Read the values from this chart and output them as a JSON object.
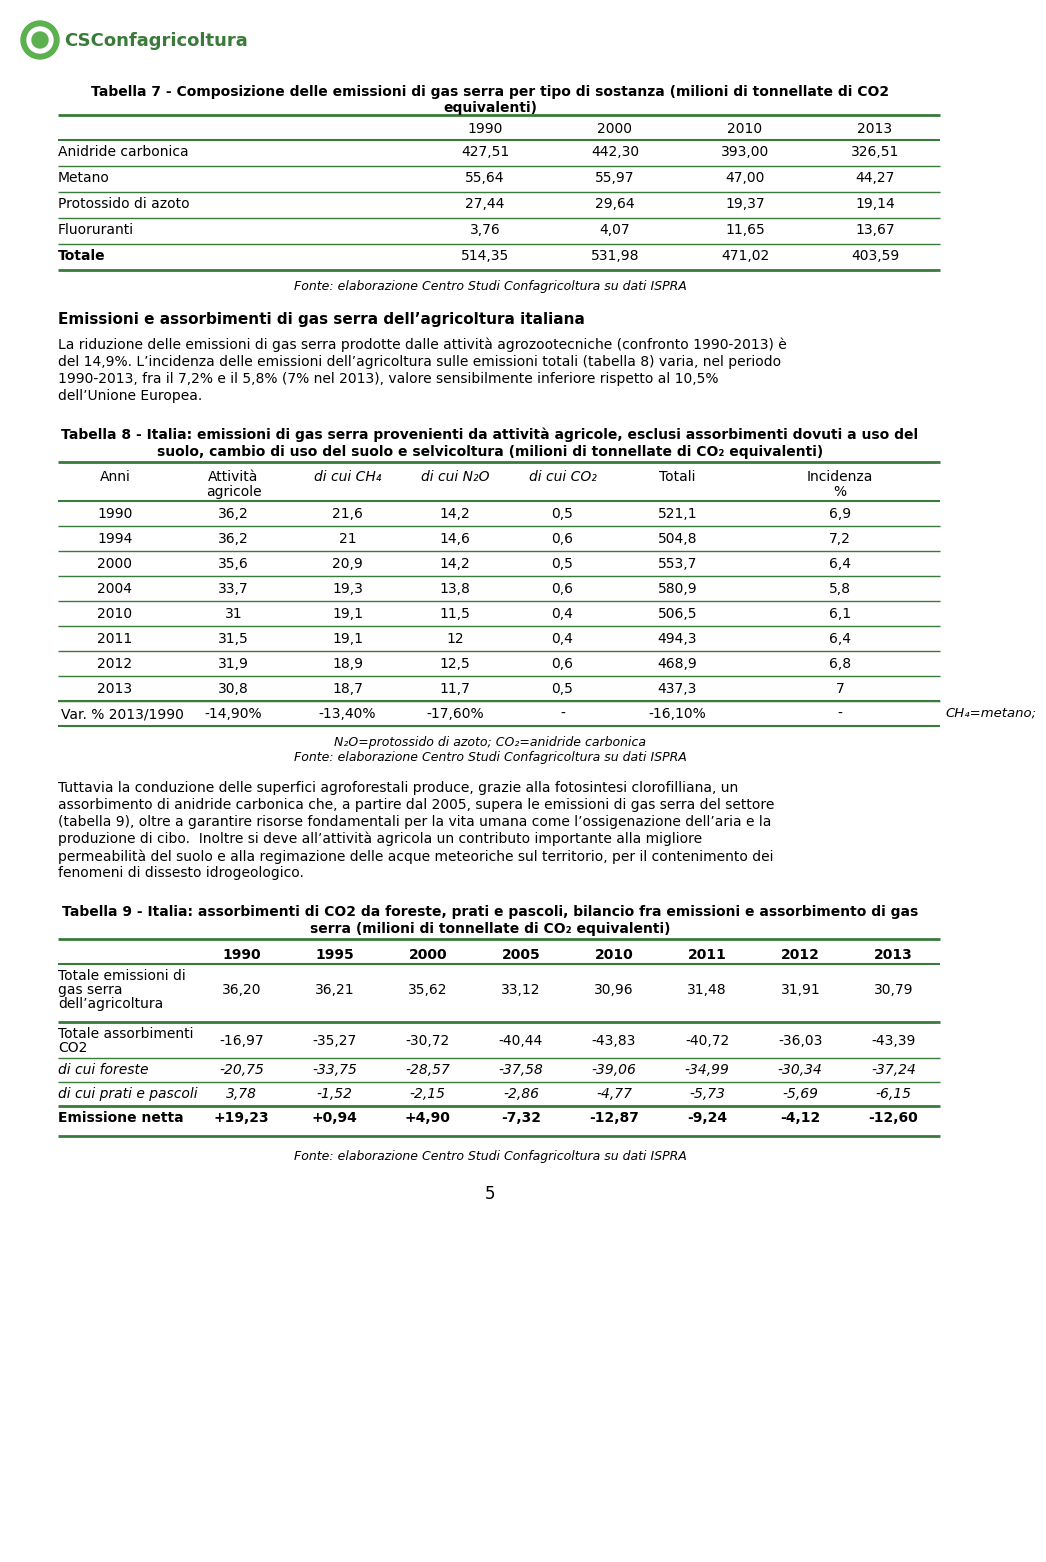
{
  "logo_text": "CSConfagricoltura",
  "page_number": "5",
  "table7_title_line1": "Tabella 7 - Composizione delle emissioni di gas serra per tipo di sostanza (milioni di tonnellate di CO2",
  "table7_title_line2": "equivalenti)",
  "table7_cols": [
    "",
    "1990",
    "2000",
    "2010",
    "2013"
  ],
  "table7_rows": [
    [
      "Anidride carbonica",
      "427,51",
      "442,30",
      "393,00",
      "326,51"
    ],
    [
      "Metano",
      "55,64",
      "55,97",
      "47,00",
      "44,27"
    ],
    [
      "Protossido di azoto",
      "27,44",
      "29,64",
      "19,37",
      "19,14"
    ],
    [
      "Fluoruranti",
      "3,76",
      "4,07",
      "11,65",
      "13,67"
    ],
    [
      "Totale",
      "514,35",
      "531,98",
      "471,02",
      "403,59"
    ]
  ],
  "table7_fonte": "Fonte: elaborazione Centro Studi Confagricoltura su dati ISPRA",
  "section_title": "Emissioni e assorbimenti di gas serra dell’agricoltura italiana",
  "para1_lines": [
    "La riduzione delle emissioni di gas serra prodotte dalle attività agrozootecniche (confronto 1990-2013) è",
    "del 14,9%. L’incidenza delle emissioni dell’agricoltura sulle emissioni totali (tabella 8) varia, nel periodo",
    "1990-2013, fra il 7,2% e il 5,8% (7% nel 2013), valore sensibilmente inferiore rispetto al 10,5%",
    "dell’Unione Europea."
  ],
  "table8_title_line1": "Tabella 8 - Italia: emissioni di gas serra provenienti da attività agricole, esclusi assorbimenti dovuti a uso del",
  "table8_title_line2": "suolo, cambio di uso del suolo e selvicoltura (milioni di tonnellate di CO₂ equivalenti)",
  "table8_rows": [
    [
      "1990",
      "36,2",
      "21,6",
      "14,2",
      "0,5",
      "521,1",
      "6,9"
    ],
    [
      "1994",
      "36,2",
      "21",
      "14,6",
      "0,6",
      "504,8",
      "7,2"
    ],
    [
      "2000",
      "35,6",
      "20,9",
      "14,2",
      "0,5",
      "553,7",
      "6,4"
    ],
    [
      "2004",
      "33,7",
      "19,3",
      "13,8",
      "0,6",
      "580,9",
      "5,8"
    ],
    [
      "2010",
      "31",
      "19,1",
      "11,5",
      "0,4",
      "506,5",
      "6,1"
    ],
    [
      "2011",
      "31,5",
      "19,1",
      "12",
      "0,4",
      "494,3",
      "6,4"
    ],
    [
      "2012",
      "31,9",
      "18,9",
      "12,5",
      "0,6",
      "468,9",
      "6,8"
    ],
    [
      "2013",
      "30,8",
      "18,7",
      "11,7",
      "0,5",
      "437,3",
      "7"
    ]
  ],
  "table8_varrow": [
    "Var. % 2013/1990",
    "-14,90%",
    "-13,40%",
    "-17,60%",
    "-",
    "-16,10%",
    "-"
  ],
  "table8_ch4note": "CH₄=metano;",
  "table8_footnote1": "N₂O=protossido di azoto; CO₂=anidride carbonica",
  "table8_footnote2": "Fonte: elaborazione Centro Studi Confagricoltura su dati ISPRA",
  "para2_lines": [
    "Tuttavia la conduzione delle superfici agroforestali produce, grazie alla fotosintesi clorofilliana, un",
    "assorbimento di anidride carbonica che, a partire dal 2005, supera le emissioni di gas serra del settore",
    "(tabella 9), oltre a garantire risorse fondamentali per la vita umana come l’ossigenazione dell’aria e la",
    "produzione di cibo.  Inoltre si deve all’attività agricola un contributo importante alla migliore",
    "permeabilità del suolo e alla regimazione delle acque meteoriche sul territorio, per il contenimento dei",
    "fenomeni di dissesto idrogeologico."
  ],
  "table9_title_line1": "Tabella 9 - Italia: assorbimenti di CO2 da foreste, prati e pascoli, bilancio fra emissioni e assorbimento di gas",
  "table9_title_line2": "serra (milioni di tonnellate di CO₂ equivalenti)",
  "table9_years": [
    "1990",
    "1995",
    "2000",
    "2005",
    "2010",
    "2011",
    "2012",
    "2013"
  ],
  "table9_rows": [
    [
      "Totale emissioni di\ngas serra\ndell’agricoltura",
      "36,20",
      "36,21",
      "35,62",
      "33,12",
      "30,96",
      "31,48",
      "31,91",
      "30,79"
    ],
    [
      "Totale assorbimenti\nCO2",
      "-16,97",
      "-35,27",
      "-30,72",
      "-40,44",
      "-43,83",
      "-40,72",
      "-36,03",
      "-43,39"
    ],
    [
      "di cui foreste",
      "-20,75",
      "-33,75",
      "-28,57",
      "-37,58",
      "-39,06",
      "-34,99",
      "-30,34",
      "-37,24"
    ],
    [
      "di cui prati e pascoli",
      "3,78",
      "-1,52",
      "-2,15",
      "-2,86",
      "-4,77",
      "-5,73",
      "-5,69",
      "-6,15"
    ],
    [
      "Emissione netta",
      "+19,23",
      "+0,94",
      "+4,90",
      "-7,32",
      "-12,87",
      "-9,24",
      "-4,12",
      "-12,60"
    ]
  ],
  "table9_fonte": "Fonte: elaborazione Centro Studi Confagricoltura su dati ISPRA",
  "green_color": "#3a7a3a"
}
